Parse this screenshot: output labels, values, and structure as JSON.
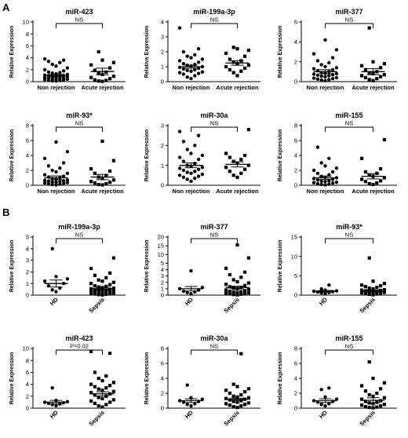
{
  "panel_labels": [
    "A",
    "B"
  ],
  "chart_data": [
    {
      "id": "a1",
      "type": "scatter",
      "title": "miR-423",
      "ylabel": "Relative Expression",
      "ylim": [
        0,
        10
      ],
      "yticks": [
        0,
        2,
        4,
        6,
        8,
        10
      ],
      "categories": [
        "Non rejection",
        "Acute rejection"
      ],
      "significance": "NS",
      "groups": [
        {
          "name": "Non rejection",
          "marker": "circle",
          "mean": 1.0,
          "sem": 0.2,
          "values": [
            0.1,
            0.15,
            0.2,
            0.25,
            0.3,
            0.35,
            0.4,
            0.45,
            0.5,
            0.55,
            0.6,
            0.65,
            0.7,
            0.8,
            0.85,
            0.9,
            0.95,
            1.0,
            1.05,
            1.1,
            1.2,
            1.3,
            1.4,
            1.5,
            1.6,
            1.8,
            2.0,
            2.3,
            2.6,
            2.9,
            3.2,
            3.4,
            3.6,
            3.8
          ]
        },
        {
          "name": "Acute rejection",
          "marker": "square",
          "mean": 1.7,
          "sem": 0.55,
          "values": [
            0.05,
            0.1,
            0.2,
            0.3,
            0.5,
            0.7,
            0.9,
            1.2,
            1.4,
            1.6,
            1.9,
            2.3,
            2.8,
            3.2,
            3.6,
            5.0
          ]
        }
      ]
    },
    {
      "id": "a2",
      "type": "scatter",
      "title": "miR-199a-3p",
      "ylabel": "Relative Expression",
      "ylim": [
        0,
        4
      ],
      "yticks": [
        0,
        1,
        2,
        3,
        4
      ],
      "categories": [
        "Non rejection",
        "Acute rejection"
      ],
      "significance": "NS",
      "groups": [
        {
          "name": "Non rejection",
          "marker": "circle",
          "mean": 1.0,
          "sem": 0.1,
          "values": [
            0.2,
            0.3,
            0.4,
            0.5,
            0.55,
            0.6,
            0.65,
            0.7,
            0.75,
            0.8,
            0.85,
            0.9,
            0.95,
            1.0,
            1.05,
            1.1,
            1.15,
            1.2,
            1.3,
            1.4,
            1.5,
            1.6,
            1.7,
            1.8,
            2.0,
            2.2,
            3.6
          ]
        },
        {
          "name": "Acute rejection",
          "marker": "square",
          "mean": 1.25,
          "sem": 0.15,
          "values": [
            0.4,
            0.6,
            0.7,
            0.8,
            0.9,
            1.0,
            1.1,
            1.2,
            1.3,
            1.4,
            1.5,
            1.7,
            1.9,
            2.1,
            2.2,
            2.3
          ]
        }
      ]
    },
    {
      "id": "a3",
      "type": "scatter",
      "title": "miR-377",
      "ylabel": "Relative Expression",
      "ylim": [
        0,
        6
      ],
      "yticks": [
        0,
        2,
        4,
        6
      ],
      "categories": [
        "Non rejection",
        "Acute rejection"
      ],
      "significance": "NS",
      "groups": [
        {
          "name": "Non rejection",
          "marker": "circle",
          "mean": 1.0,
          "sem": 0.2,
          "values": [
            0.1,
            0.15,
            0.2,
            0.25,
            0.3,
            0.35,
            0.4,
            0.5,
            0.55,
            0.6,
            0.65,
            0.7,
            0.75,
            0.8,
            0.85,
            0.9,
            1.0,
            1.1,
            1.2,
            1.3,
            1.4,
            1.5,
            1.7,
            1.9,
            2.1,
            2.4,
            2.8,
            3.2,
            4.2
          ]
        },
        {
          "name": "Acute rejection",
          "marker": "square",
          "mean": 1.0,
          "sem": 0.3,
          "values": [
            0.1,
            0.2,
            0.3,
            0.4,
            0.5,
            0.6,
            0.7,
            0.8,
            0.9,
            1.0,
            1.2,
            1.4,
            1.6,
            1.8,
            2.0,
            5.4
          ]
        }
      ]
    },
    {
      "id": "a4",
      "type": "scatter",
      "title": "miR-93*",
      "ylabel": "Relative Expression",
      "ylim": [
        0,
        8
      ],
      "yticks": [
        0,
        2,
        4,
        6,
        8
      ],
      "categories": [
        "Non rejection",
        "Acute rejection"
      ],
      "significance": "NS",
      "groups": [
        {
          "name": "Non rejection",
          "marker": "circle",
          "mean": 1.0,
          "sem": 0.25,
          "values": [
            0.05,
            0.1,
            0.15,
            0.2,
            0.25,
            0.3,
            0.35,
            0.4,
            0.45,
            0.5,
            0.55,
            0.6,
            0.65,
            0.7,
            0.8,
            0.9,
            1.0,
            1.1,
            1.2,
            1.4,
            1.6,
            1.8,
            2.0,
            2.3,
            2.6,
            3.0,
            3.6,
            4.5,
            5.8
          ]
        },
        {
          "name": "Acute rejection",
          "marker": "square",
          "mean": 1.1,
          "sem": 0.35,
          "values": [
            0.05,
            0.1,
            0.2,
            0.3,
            0.4,
            0.5,
            0.7,
            0.9,
            1.1,
            1.3,
            1.6,
            1.9,
            2.2,
            3.3,
            5.9
          ]
        }
      ]
    },
    {
      "id": "a5",
      "type": "scatter",
      "title": "miR-30a",
      "ylabel": "Relative Expression",
      "ylim": [
        0,
        3
      ],
      "yticks": [
        0,
        1,
        2,
        3
      ],
      "categories": [
        "Non rejection",
        "Acute rejection"
      ],
      "significance": "NS",
      "groups": [
        {
          "name": "Non rejection",
          "marker": "circle",
          "mean": 1.0,
          "sem": 0.12,
          "values": [
            0.2,
            0.3,
            0.35,
            0.4,
            0.45,
            0.5,
            0.55,
            0.6,
            0.65,
            0.7,
            0.75,
            0.8,
            0.85,
            0.9,
            0.95,
            1.0,
            1.1,
            1.2,
            1.3,
            1.4,
            1.5,
            1.6,
            1.8,
            2.0,
            2.2,
            2.5,
            2.7
          ]
        },
        {
          "name": "Acute rejection",
          "marker": "square",
          "mean": 1.05,
          "sem": 0.13,
          "values": [
            0.4,
            0.5,
            0.6,
            0.7,
            0.8,
            0.9,
            1.0,
            1.1,
            1.2,
            1.3,
            1.4,
            1.5,
            1.6,
            2.8
          ]
        }
      ]
    },
    {
      "id": "a6",
      "type": "scatter",
      "title": "miR-155",
      "ylabel": "Relative Expression",
      "ylim": [
        0,
        8
      ],
      "yticks": [
        0,
        2,
        4,
        6,
        8
      ],
      "categories": [
        "Non rejection",
        "Acute rejection"
      ],
      "significance": "NS",
      "groups": [
        {
          "name": "Non rejection",
          "marker": "circle",
          "mean": 1.0,
          "sem": 0.2,
          "values": [
            0.05,
            0.1,
            0.15,
            0.2,
            0.3,
            0.35,
            0.4,
            0.5,
            0.55,
            0.6,
            0.7,
            0.8,
            0.9,
            1.0,
            1.1,
            1.2,
            1.4,
            1.6,
            1.8,
            2.0,
            2.3,
            2.6,
            3.0,
            3.6,
            5.1
          ]
        },
        {
          "name": "Acute rejection",
          "marker": "square",
          "mean": 1.2,
          "sem": 0.35,
          "values": [
            0.1,
            0.2,
            0.3,
            0.5,
            0.6,
            0.8,
            1.0,
            1.2,
            1.4,
            1.6,
            1.8,
            2.2,
            3.6,
            6.1
          ]
        }
      ]
    },
    {
      "id": "b1",
      "type": "scatter",
      "title": "miR-199a-3p",
      "ylabel": "Relative Expression",
      "ylim": [
        0,
        5
      ],
      "yticks": [
        0,
        1,
        2,
        3,
        4,
        5
      ],
      "categories": [
        "HD",
        "Sepsis"
      ],
      "significance": "NS",
      "groups": [
        {
          "name": "HD",
          "marker": "circle",
          "mean": 1.0,
          "sem": 0.3,
          "values": [
            0.3,
            0.45,
            0.6,
            0.8,
            1.0,
            1.2,
            1.4,
            1.6,
            4.0
          ]
        },
        {
          "name": "Sepsis",
          "marker": "square",
          "mean": 0.55,
          "sem": 0.1,
          "values": [
            0.02,
            0.05,
            0.08,
            0.1,
            0.12,
            0.15,
            0.18,
            0.2,
            0.22,
            0.25,
            0.28,
            0.3,
            0.32,
            0.35,
            0.38,
            0.4,
            0.42,
            0.45,
            0.5,
            0.55,
            0.6,
            0.65,
            0.7,
            0.75,
            0.8,
            0.9,
            1.0,
            1.1,
            1.2,
            1.3,
            1.5,
            1.7,
            1.9,
            2.3,
            3.2
          ]
        }
      ]
    },
    {
      "id": "b2",
      "type": "scatter",
      "title": "miR-377",
      "ylabel": "Relative Expression",
      "ylim": [
        0,
        20
      ],
      "yticks": [
        0,
        1,
        2,
        3,
        4,
        5,
        10,
        15,
        20
      ],
      "axis_break": 5,
      "categories": [
        "HD",
        "Sepsis"
      ],
      "significance": "NS",
      "groups": [
        {
          "name": "HD",
          "marker": "circle",
          "mean": 1.0,
          "sem": 0.35,
          "values": [
            0.2,
            0.4,
            0.5,
            0.6,
            0.8,
            1.0,
            1.2,
            3.8
          ]
        },
        {
          "name": "Sepsis",
          "marker": "square",
          "mean": 1.2,
          "sem": 0.2,
          "values": [
            0.05,
            0.1,
            0.15,
            0.2,
            0.25,
            0.3,
            0.35,
            0.4,
            0.5,
            0.55,
            0.6,
            0.7,
            0.8,
            0.9,
            1.0,
            1.1,
            1.2,
            1.3,
            1.5,
            1.7,
            1.9,
            2.1,
            2.4,
            2.8,
            3.2,
            3.6,
            4.2,
            8.0,
            15.5
          ]
        }
      ]
    },
    {
      "id": "b3",
      "type": "scatter",
      "title": "miR-93*",
      "ylabel": "Relative Expression",
      "ylim": [
        0,
        15
      ],
      "yticks": [
        0,
        5,
        10,
        15
      ],
      "categories": [
        "HD",
        "Sepsis"
      ],
      "significance": "NS",
      "groups": [
        {
          "name": "HD",
          "marker": "circle",
          "mean": 1.0,
          "sem": 0.2,
          "values": [
            0.4,
            0.6,
            0.7,
            0.8,
            0.9,
            1.0,
            1.1,
            1.3,
            1.6,
            2.6
          ]
        },
        {
          "name": "Sepsis",
          "marker": "square",
          "mean": 1.05,
          "sem": 0.3,
          "values": [
            0.1,
            0.2,
            0.3,
            0.4,
            0.5,
            0.6,
            0.7,
            0.8,
            0.9,
            1.0,
            1.1,
            1.2,
            1.3,
            1.4,
            1.6,
            1.8,
            2.0,
            2.2,
            2.4,
            2.6,
            3.0,
            3.6,
            9.6
          ]
        }
      ]
    },
    {
      "id": "b4",
      "type": "scatter",
      "title": "miR-423",
      "ylabel": "Relative Expression",
      "ylim": [
        0,
        10
      ],
      "yticks": [
        0,
        2,
        4,
        6,
        8,
        10
      ],
      "categories": [
        "HD",
        "Sepsis"
      ],
      "significance": "P=0.02",
      "groups": [
        {
          "name": "HD",
          "marker": "circle",
          "mean": 1.0,
          "sem": 0.3,
          "values": [
            0.4,
            0.6,
            0.7,
            0.8,
            0.9,
            1.0,
            1.1,
            1.3,
            3.4
          ]
        },
        {
          "name": "Sepsis",
          "marker": "square",
          "mean": 2.4,
          "sem": 0.35,
          "values": [
            0.2,
            0.4,
            0.6,
            0.8,
            1.0,
            1.2,
            1.4,
            1.6,
            1.8,
            2.0,
            2.2,
            2.4,
            2.6,
            2.8,
            3.0,
            3.2,
            3.4,
            3.6,
            3.8,
            4.0,
            4.3,
            4.6,
            5.0,
            5.4,
            6.0,
            9.2,
            9.5
          ]
        }
      ]
    },
    {
      "id": "b5",
      "type": "scatter",
      "title": "miR-30a",
      "ylabel": "Relative Expression",
      "ylim": [
        0,
        8
      ],
      "yticks": [
        0,
        2,
        4,
        6,
        8
      ],
      "categories": [
        "HD",
        "Sepsis"
      ],
      "significance": "NS",
      "groups": [
        {
          "name": "HD",
          "marker": "circle",
          "mean": 1.0,
          "sem": 0.25,
          "values": [
            0.3,
            0.5,
            0.6,
            0.8,
            0.9,
            1.0,
            1.2,
            1.4,
            3.1
          ]
        },
        {
          "name": "Sepsis",
          "marker": "square",
          "mean": 1.2,
          "sem": 0.15,
          "values": [
            0.1,
            0.2,
            0.3,
            0.4,
            0.5,
            0.6,
            0.7,
            0.8,
            0.9,
            1.0,
            1.1,
            1.2,
            1.3,
            1.4,
            1.5,
            1.6,
            1.8,
            2.0,
            2.2,
            2.4,
            2.6,
            2.9,
            3.2,
            7.3
          ]
        }
      ]
    },
    {
      "id": "b6",
      "type": "scatter",
      "title": "miR-155",
      "ylabel": "Relative Expression",
      "ylim": [
        0,
        8
      ],
      "yticks": [
        0,
        2,
        4,
        6,
        8
      ],
      "categories": [
        "HD",
        "Sepsis"
      ],
      "significance": "NS",
      "groups": [
        {
          "name": "HD",
          "marker": "circle",
          "mean": 1.0,
          "sem": 0.25,
          "values": [
            0.3,
            0.5,
            0.6,
            0.8,
            0.9,
            1.0,
            1.2,
            1.5,
            2.5,
            2.7
          ]
        },
        {
          "name": "Sepsis",
          "marker": "square",
          "mean": 1.05,
          "sem": 0.35,
          "values": [
            0.05,
            0.1,
            0.15,
            0.2,
            0.3,
            0.4,
            0.5,
            0.6,
            0.7,
            0.8,
            0.9,
            1.0,
            1.2,
            1.4,
            1.6,
            1.8,
            2.0,
            2.3,
            2.6,
            3.0,
            3.4,
            4.0,
            6.2
          ]
        }
      ]
    }
  ]
}
